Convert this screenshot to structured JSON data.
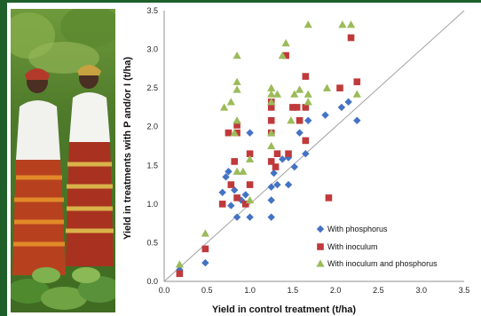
{
  "colors": {
    "frame": "#1f5f2a",
    "phosphorus": "#4472c4",
    "inoculum": "#c0393b",
    "inoculum_phosphorus": "#9bbb59",
    "reference_line": "#a0a0a0",
    "axis": "#909090"
  },
  "photo": {
    "description_icon": "farmers-in-field-photo"
  },
  "chart_data": {
    "type": "scatter",
    "xlabel": "Yield in control treatment (t/ha)",
    "ylabel": "Yield in treatments with P and/or I  (t/ha)",
    "xlim": [
      0.0,
      3.5
    ],
    "ylim": [
      0.0,
      3.5
    ],
    "xticks": [
      "0.0",
      "0.5",
      "1.0",
      "1.5",
      "2.0",
      "2.5",
      "3.0",
      "3.5"
    ],
    "yticks": [
      "0.0",
      "0.5",
      "1.0",
      "1.5",
      "2.0",
      "2.5",
      "3.0",
      "3.5"
    ],
    "grid": false,
    "reference_line": "y = x",
    "legend_position": "lower-right",
    "series": [
      {
        "name": "With phosphorus",
        "marker": "diamond",
        "color": "#4472c4",
        "points": [
          [
            0.18,
            0.15
          ],
          [
            0.48,
            0.24
          ],
          [
            0.68,
            1.15
          ],
          [
            0.72,
            1.35
          ],
          [
            0.75,
            1.42
          ],
          [
            0.78,
            0.98
          ],
          [
            0.82,
            1.18
          ],
          [
            0.85,
            0.83
          ],
          [
            0.9,
            1.05
          ],
          [
            0.95,
            1.12
          ],
          [
            1.0,
            1.92
          ],
          [
            1.0,
            0.83
          ],
          [
            1.25,
            1.05
          ],
          [
            1.25,
            0.83
          ],
          [
            1.25,
            1.22
          ],
          [
            1.28,
            1.4
          ],
          [
            1.32,
            1.25
          ],
          [
            1.38,
            1.58
          ],
          [
            1.45,
            1.25
          ],
          [
            1.45,
            1.6
          ],
          [
            1.52,
            1.48
          ],
          [
            1.58,
            1.92
          ],
          [
            1.65,
            1.65
          ],
          [
            1.68,
            2.08
          ],
          [
            1.88,
            2.15
          ],
          [
            2.07,
            2.25
          ],
          [
            2.15,
            2.32
          ],
          [
            2.25,
            2.08
          ]
        ]
      },
      {
        "name": "With inoculum",
        "marker": "square",
        "color": "#c0393b",
        "points": [
          [
            0.18,
            0.1
          ],
          [
            0.48,
            0.42
          ],
          [
            0.68,
            1.0
          ],
          [
            0.75,
            1.92
          ],
          [
            0.78,
            1.25
          ],
          [
            0.82,
            1.55
          ],
          [
            0.85,
            1.08
          ],
          [
            0.85,
            1.92
          ],
          [
            0.85,
            2.02
          ],
          [
            0.95,
            1.0
          ],
          [
            1.0,
            1.25
          ],
          [
            1.0,
            1.65
          ],
          [
            1.25,
            1.92
          ],
          [
            1.25,
            2.08
          ],
          [
            1.25,
            2.25
          ],
          [
            1.25,
            2.32
          ],
          [
            1.25,
            1.55
          ],
          [
            1.3,
            1.48
          ],
          [
            1.32,
            1.65
          ],
          [
            1.42,
            2.92
          ],
          [
            1.45,
            1.65
          ],
          [
            1.5,
            2.25
          ],
          [
            1.55,
            2.25
          ],
          [
            1.58,
            2.08
          ],
          [
            1.65,
            2.25
          ],
          [
            1.65,
            2.65
          ],
          [
            1.65,
            1.82
          ],
          [
            1.92,
            1.08
          ],
          [
            2.05,
            2.5
          ],
          [
            2.18,
            3.15
          ],
          [
            2.25,
            2.58
          ]
        ]
      },
      {
        "name": "With inoculum and phosphorus",
        "marker": "triangle",
        "color": "#9bbb59",
        "points": [
          [
            0.18,
            0.22
          ],
          [
            0.48,
            0.62
          ],
          [
            0.7,
            2.25
          ],
          [
            0.78,
            2.32
          ],
          [
            0.82,
            1.92
          ],
          [
            0.85,
            2.92
          ],
          [
            0.85,
            2.58
          ],
          [
            0.85,
            2.48
          ],
          [
            0.85,
            2.08
          ],
          [
            0.85,
            1.42
          ],
          [
            0.92,
            1.42
          ],
          [
            1.0,
            1.58
          ],
          [
            1.0,
            1.05
          ],
          [
            1.25,
            2.5
          ],
          [
            1.25,
            2.42
          ],
          [
            1.25,
            2.32
          ],
          [
            1.25,
            1.92
          ],
          [
            1.25,
            1.75
          ],
          [
            1.32,
            2.42
          ],
          [
            1.38,
            2.92
          ],
          [
            1.42,
            3.08
          ],
          [
            1.48,
            2.08
          ],
          [
            1.52,
            2.42
          ],
          [
            1.58,
            2.48
          ],
          [
            1.68,
            3.32
          ],
          [
            1.68,
            2.42
          ],
          [
            1.68,
            2.32
          ],
          [
            1.9,
            2.5
          ],
          [
            2.08,
            3.32
          ],
          [
            2.18,
            3.32
          ],
          [
            2.25,
            2.42
          ]
        ]
      }
    ]
  }
}
